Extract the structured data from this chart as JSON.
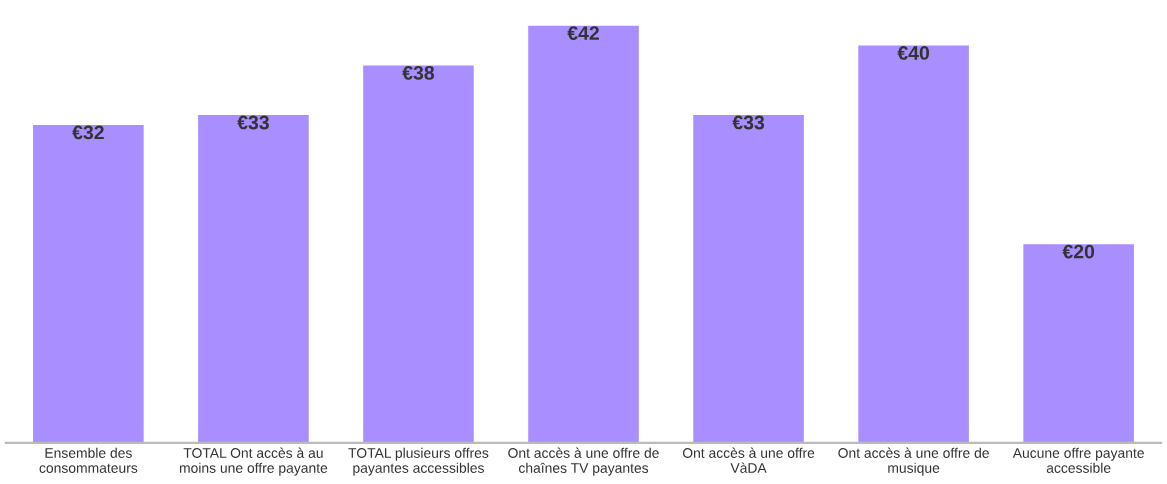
{
  "chart_data": {
    "type": "bar",
    "categories": [
      "Ensemble des\nconsommateurs",
      "TOTAL Ont accès à au\nmoins une offre payante",
      "TOTAL plusieurs offres\npayantes accessibles",
      "Ont accès à une offre de\nchaînes TV payantes",
      "Ont accès à une offre\nVàDA",
      "Ont accès à une offre de\nmusique",
      "Aucune offre payante\naccessible"
    ],
    "values": [
      32,
      33,
      38,
      42,
      33,
      40,
      20
    ],
    "value_labels": [
      "€32",
      "€33",
      "€38",
      "€42",
      "€33",
      "€40",
      "€20"
    ],
    "color": "#a98eff",
    "tick_labels": "x",
    "grid": false
  }
}
